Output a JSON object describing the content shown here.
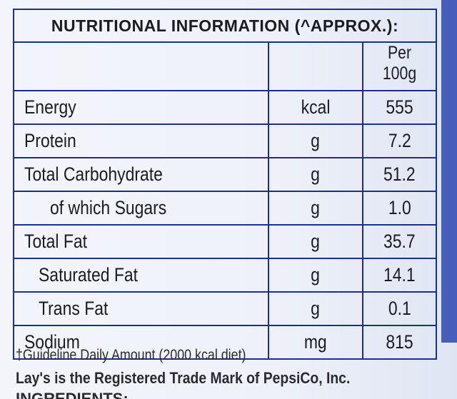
{
  "header": {
    "title": "NUTRITIONAL INFORMATION (^APPROX.):"
  },
  "table": {
    "column_header": "Per 100g",
    "rows": [
      [
        "Energy",
        "kcal",
        "555"
      ],
      [
        "Protein",
        "g",
        "7.2"
      ],
      [
        "Total Carbohydrate",
        "g",
        "51.2"
      ],
      [
        "of which Sugars",
        "g",
        "1.0"
      ],
      [
        "Total Fat",
        "g",
        "35.7"
      ],
      [
        "Saturated Fat",
        "g",
        "14.1"
      ],
      [
        "Trans Fat",
        "g",
        "0.1"
      ],
      [
        "Sodium",
        "mg",
        "815"
      ]
    ]
  },
  "footnotes": [
    "†Guideline Daily Amount (2000 kcal diet)",
    "Lay's is the Registered Trade Mark of PepsiCo, Inc."
  ],
  "ingredients_label": "INGREDIENTS:"
}
